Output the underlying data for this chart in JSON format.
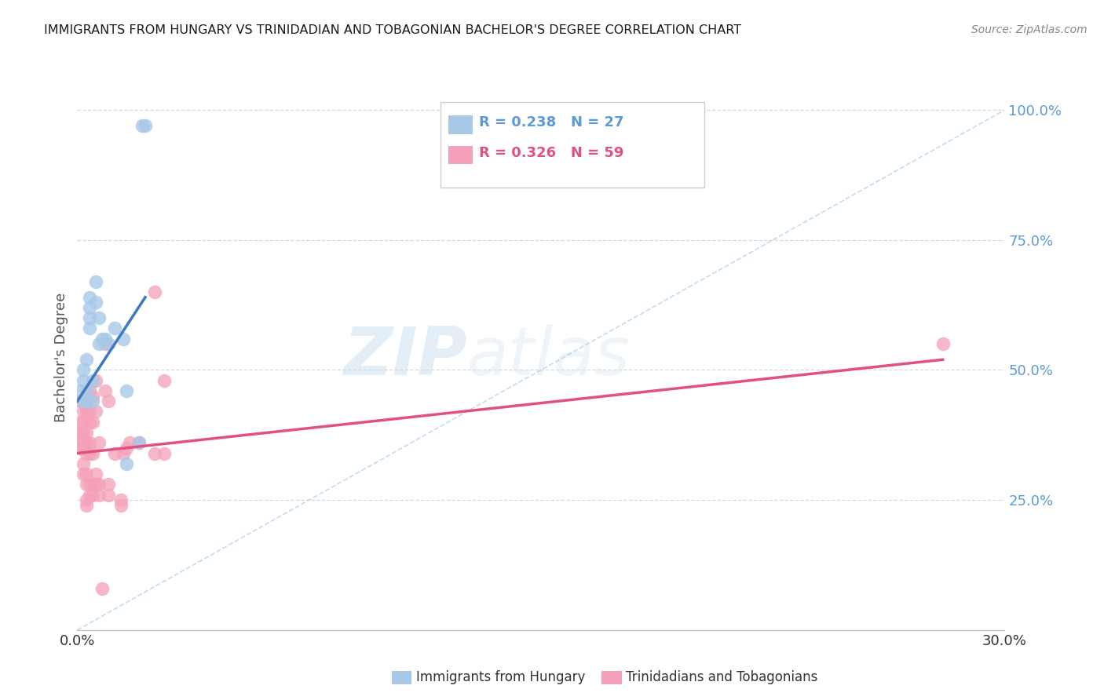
{
  "title": "IMMIGRANTS FROM HUNGARY VS TRINIDADIAN AND TOBAGONIAN BACHELOR'S DEGREE CORRELATION CHART",
  "source": "Source: ZipAtlas.com",
  "ylabel": "Bachelor's Degree",
  "yticks": [
    0,
    25,
    50,
    75,
    100
  ],
  "ytick_labels": [
    "",
    "25.0%",
    "50.0%",
    "75.0%",
    "100.0%"
  ],
  "xticks": [
    0,
    30
  ],
  "xtick_labels": [
    "0.0%",
    "30.0%"
  ],
  "xlim": [
    0,
    30
  ],
  "ylim": [
    0,
    105
  ],
  "legend_r_blue": "R = 0.238",
  "legend_n_blue": "N = 27",
  "legend_r_pink": "R = 0.326",
  "legend_n_pink": "N = 59",
  "blue_color": "#a8c8e8",
  "pink_color": "#f4a0b8",
  "blue_line_color": "#3a7abf",
  "pink_line_color": "#e05080",
  "blue_scatter": [
    [
      0.1,
      46
    ],
    [
      0.2,
      48
    ],
    [
      0.2,
      50
    ],
    [
      0.2,
      44
    ],
    [
      0.3,
      52
    ],
    [
      0.3,
      46
    ],
    [
      0.3,
      44
    ],
    [
      0.4,
      62
    ],
    [
      0.4,
      60
    ],
    [
      0.4,
      58
    ],
    [
      0.4,
      64
    ],
    [
      0.5,
      48
    ],
    [
      0.5,
      44
    ],
    [
      0.6,
      67
    ],
    [
      0.6,
      63
    ],
    [
      0.7,
      60
    ],
    [
      0.7,
      55
    ],
    [
      0.8,
      56
    ],
    [
      0.9,
      56
    ],
    [
      1.0,
      55
    ],
    [
      1.2,
      58
    ],
    [
      1.5,
      56
    ],
    [
      1.6,
      46
    ],
    [
      1.6,
      32
    ],
    [
      2.0,
      36
    ],
    [
      2.1,
      97
    ],
    [
      2.2,
      97
    ]
  ],
  "pink_scatter": [
    [
      0.1,
      38
    ],
    [
      0.1,
      37
    ],
    [
      0.1,
      40
    ],
    [
      0.1,
      44
    ],
    [
      0.1,
      35
    ],
    [
      0.2,
      42
    ],
    [
      0.2,
      40
    ],
    [
      0.2,
      38
    ],
    [
      0.2,
      36
    ],
    [
      0.2,
      35
    ],
    [
      0.2,
      32
    ],
    [
      0.2,
      30
    ],
    [
      0.3,
      44
    ],
    [
      0.3,
      43
    ],
    [
      0.3,
      42
    ],
    [
      0.3,
      38
    ],
    [
      0.3,
      36
    ],
    [
      0.3,
      34
    ],
    [
      0.3,
      30
    ],
    [
      0.3,
      28
    ],
    [
      0.3,
      25
    ],
    [
      0.3,
      24
    ],
    [
      0.4,
      46
    ],
    [
      0.4,
      42
    ],
    [
      0.4,
      40
    ],
    [
      0.4,
      36
    ],
    [
      0.4,
      34
    ],
    [
      0.4,
      28
    ],
    [
      0.4,
      26
    ],
    [
      0.5,
      45
    ],
    [
      0.5,
      40
    ],
    [
      0.5,
      34
    ],
    [
      0.5,
      28
    ],
    [
      0.5,
      26
    ],
    [
      0.6,
      48
    ],
    [
      0.6,
      42
    ],
    [
      0.6,
      30
    ],
    [
      0.6,
      28
    ],
    [
      0.7,
      36
    ],
    [
      0.7,
      28
    ],
    [
      0.7,
      26
    ],
    [
      0.8,
      8
    ],
    [
      0.9,
      46
    ],
    [
      0.9,
      55
    ],
    [
      1.0,
      44
    ],
    [
      1.0,
      28
    ],
    [
      1.0,
      26
    ],
    [
      1.2,
      34
    ],
    [
      1.4,
      25
    ],
    [
      1.4,
      24
    ],
    [
      1.5,
      34
    ],
    [
      1.6,
      35
    ],
    [
      1.7,
      36
    ],
    [
      2.0,
      36
    ],
    [
      2.5,
      65
    ],
    [
      2.5,
      34
    ],
    [
      2.8,
      48
    ],
    [
      2.8,
      34
    ],
    [
      28.0,
      55
    ]
  ],
  "blue_line_x": [
    0.0,
    2.2
  ],
  "blue_line_y": [
    44,
    64
  ],
  "pink_line_x": [
    0.0,
    28.0
  ],
  "pink_line_y": [
    34,
    52
  ],
  "dash_line_x": [
    0,
    30
  ],
  "dash_line_y": [
    0,
    100
  ],
  "watermark_zip": "ZIP",
  "watermark_atlas": "atlas",
  "label_blue": "Immigrants from Hungary",
  "label_pink": "Trinidadians and Tobagonians",
  "legend_blue_text_color": "#5b9bd5",
  "legend_pink_text_color": "#e05080",
  "ytick_color": "#5b9bd5"
}
